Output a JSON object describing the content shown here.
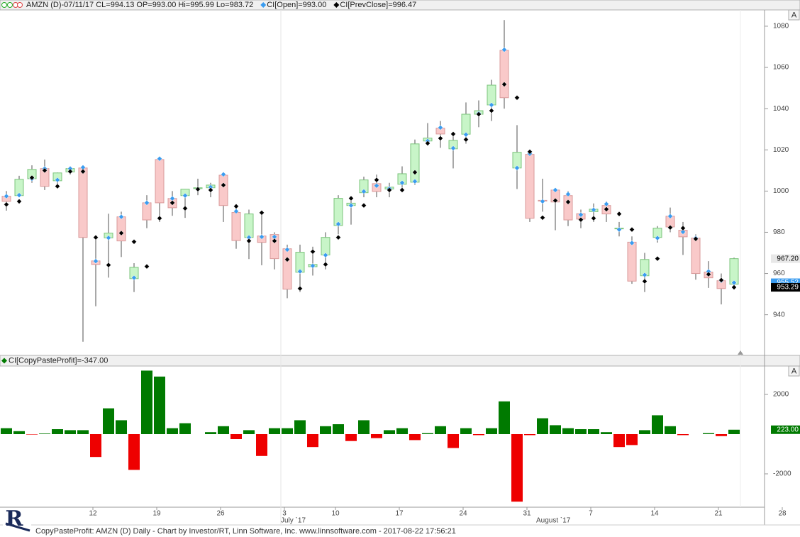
{
  "header": {
    "zoom_button": "A",
    "logo": "R",
    "footer": "CopyPasteProfit: AMZN (D) Daily - Chart by Investor/RT, Linn Software, Inc. www.linnsoftware.com - 2017-08-22 17:56:21"
  },
  "chart_data": [
    {
      "type": "candlestick",
      "title": "AMZN (D)-07/11/17 CL=994.13 OP=993.00 Hi=995.99 Lo=983.72",
      "open": [
        997.5,
        997.8,
        1006,
        1010.9,
        1005,
        1009.3,
        1011.2,
        966.1,
        977.3,
        987.5,
        957.5,
        994.3,
        1015.3,
        996.4,
        997.8,
        1001.2,
        1001.6,
        1007.7,
        989.6,
        977.5,
        978.2,
        978.9,
        972,
        960.6,
        963.3,
        969,
        983.3,
        993,
        999.2,
        1003.6,
        1001,
        1003.3,
        1004.3,
        1024.3,
        1030.5,
        1020.5,
        1027.6,
        1037.3,
        1041.8,
        1068.3,
        1011.2,
        1017.8,
        995.5,
        1000.5,
        997.8,
        989,
        990,
        993,
        982,
        975.2,
        958.9,
        977.5,
        987.8,
        981,
        977.2,
        960.7,
        956.5,
        954.8
      ],
      "high": [
        1000,
        1007.4,
        1012.5,
        1015.3,
        1009,
        1012,
        1012,
        977,
        989,
        990,
        965,
        998,
        1016,
        1000,
        1001,
        1006,
        1004,
        1009,
        993,
        991,
        989,
        980,
        974,
        974,
        973,
        980,
        998,
        995.99,
        1007,
        1008,
        1004,
        1012,
        1025,
        1033,
        1034,
        1027,
        1043,
        1044,
        1054,
        1083,
        1032,
        1020,
        1006,
        1001,
        1000,
        991,
        994,
        995,
        985,
        978,
        970,
        983,
        992,
        985,
        979,
        966,
        960,
        967.7
      ],
      "low": [
        990.5,
        997.1,
        1004,
        1000.5,
        1002,
        1008,
        926.9,
        944.1,
        958,
        968,
        951,
        982,
        985,
        988,
        987,
        998,
        997,
        985,
        972,
        967,
        964,
        962,
        948,
        951,
        959,
        962,
        979,
        983.72,
        997,
        997,
        997,
        1000,
        1003,
        1022,
        1021,
        1011,
        1023,
        1031,
        1034,
        1040,
        1001,
        985,
        990,
        981,
        983,
        982,
        985,
        985,
        978,
        955,
        951,
        975,
        980,
        969,
        957,
        953,
        945,
        953.7
      ],
      "close": [
        995,
        1005.7,
        1010.5,
        1002.3,
        1008.8,
        1010.9,
        977.5,
        964.4,
        979.6,
        975.8,
        963,
        986,
        994.3,
        991.9,
        1000.9,
        1001.6,
        1002.9,
        993,
        976,
        988.9,
        975.1,
        967.2,
        952.4,
        970.3,
        964.4,
        977.5,
        996.47,
        994.13,
        1005.4,
        999.8,
        1001.9,
        1008.4,
        1022.9,
        1025.7,
        1027.7,
        1024.6,
        1037.3,
        1039,
        1051.4,
        1045.3,
        1018.8,
        986.8,
        995.2,
        994.7,
        986,
        986.4,
        991.2,
        988.9,
        982,
        956.3,
        966.8,
        982,
        982.6,
        977.8,
        960,
        957.9,
        952.7,
        967.2
      ],
      "close_label": "967.20",
      "up_color": "#c8f5c8",
      "down_color": "#f9c9c9",
      "series": [
        {
          "name": "CI[Open]",
          "readout": "=993.00",
          "color": "#3a9cf0",
          "last_label": "955.52",
          "values": [
            997.5,
            998,
            1006,
            1010.9,
            1005.4,
            1010.9,
            1011.5,
            966,
            977.3,
            987.5,
            957.9,
            994.3,
            1015.7,
            996.4,
            997.8,
            1000.9,
            1001.9,
            1008.1,
            990.2,
            977.5,
            977.8,
            977.8,
            971.6,
            961,
            963.7,
            968.9,
            984,
            993,
            999.8,
            1002.6,
            1001.2,
            1004,
            1004.7,
            1024.3,
            1030.8,
            1020.8,
            1027.4,
            1037.7,
            1041.8,
            1068.6,
            1011.2,
            1018.1,
            995,
            1000.5,
            998.5,
            988.5,
            990.9,
            993.7,
            981.3,
            974.8,
            959.3,
            977.2,
            987.8,
            980.2,
            977.2,
            961,
            956.5,
            955.52
          ]
        },
        {
          "name": "CI[PrevClose]",
          "readout": "=996.47",
          "color": "#000000",
          "last_label": "953.29",
          "values": [
            993.5,
            995,
            1006.5,
            1010,
            1002.3,
            1009.5,
            1009.5,
            977.5,
            964.1,
            979.6,
            975.4,
            963.4,
            986.8,
            994.3,
            991.6,
            1000.9,
            1000.5,
            1002.9,
            992.6,
            975.8,
            989.5,
            975.8,
            966.8,
            952.7,
            970.6,
            964.4,
            977.5,
            996.47,
            993,
            1005.4,
            1000.5,
            1000.5,
            1009.1,
            1023.2,
            1025.6,
            1027.7,
            1025,
            1037.3,
            1039,
            1051.8,
            1045.3,
            1019.1,
            987.1,
            995.4,
            994.7,
            986.1,
            986.8,
            991.2,
            988.9,
            981.3,
            956.2,
            967.2,
            982.3,
            982,
            976.8,
            959.6,
            956.8,
            953.29
          ]
        }
      ],
      "ylim": [
        920.6,
        1087.9
      ],
      "yticks": [
        940,
        960,
        980,
        1000,
        1020,
        1040,
        1060,
        1080
      ]
    },
    {
      "type": "bar",
      "categories": [
        null,
        null,
        null,
        null,
        null,
        null,
        null,
        "12",
        null,
        null,
        null,
        null,
        "19",
        null,
        null,
        null,
        null,
        "26",
        null,
        null,
        null,
        null,
        "3",
        null,
        null,
        null,
        "10",
        null,
        null,
        null,
        null,
        "17",
        null,
        null,
        null,
        null,
        "24",
        null,
        null,
        null,
        null,
        "31",
        null,
        null,
        null,
        null,
        "7",
        null,
        null,
        null,
        null,
        "14",
        null,
        null,
        null,
        null,
        "21",
        null,
        null,
        null,
        null,
        "28"
      ],
      "month_labels": [
        null,
        null,
        null,
        null,
        null,
        null,
        null,
        null,
        null,
        null,
        null,
        null,
        null,
        null,
        null,
        null,
        null,
        null,
        null,
        null,
        null,
        null,
        "July `17",
        null,
        null,
        null,
        null,
        null,
        null,
        null,
        null,
        null,
        null,
        null,
        null,
        null,
        null,
        null,
        null,
        null,
        null,
        null,
        "August `17",
        null,
        null,
        null,
        null,
        null,
        null,
        null,
        null,
        null,
        null,
        null,
        null,
        null,
        null,
        null,
        null,
        null,
        null,
        null
      ],
      "series": [
        {
          "name": "CI[CopyPasteProfit]",
          "readout": "=-347.00",
          "color": "#007a00",
          "negative_color": "#ee0000",
          "last_label": "223.00",
          "values": [
            300,
            150,
            -20,
            30,
            250,
            200,
            200,
            -1150,
            1300,
            700,
            -1800,
            3200,
            2900,
            300,
            550,
            0,
            100,
            400,
            -250,
            200,
            -1100,
            300,
            300,
            700,
            -650,
            400,
            500,
            -347,
            700,
            -200,
            200,
            300,
            -300,
            50,
            400,
            -700,
            300,
            -50,
            300,
            1650,
            -3400,
            -50,
            800,
            450,
            300,
            250,
            250,
            100,
            -650,
            -550,
            200,
            950,
            400,
            -50,
            0,
            50,
            -100,
            223,
            null,
            null,
            null,
            null
          ]
        }
      ],
      "ylim": [
        -3680,
        3430
      ],
      "yticks": [
        -2000,
        2000
      ]
    }
  ]
}
